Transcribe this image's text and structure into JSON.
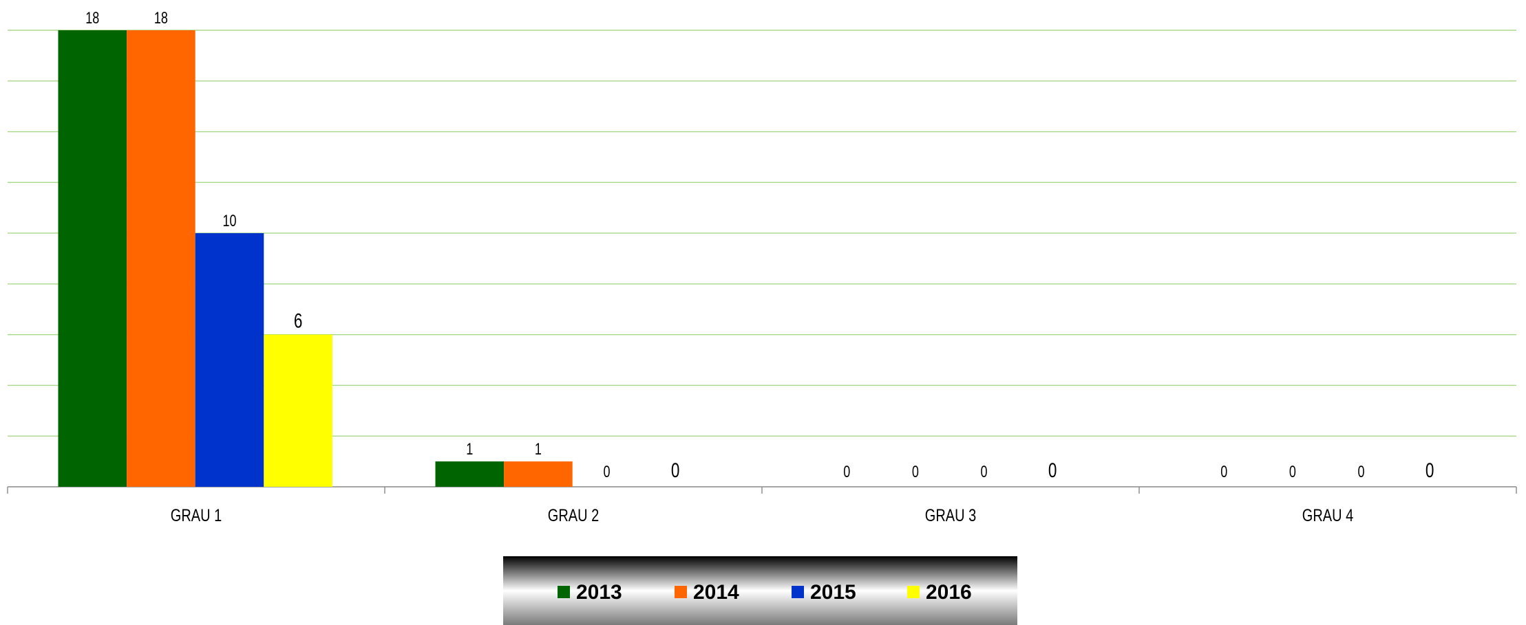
{
  "chart_data": {
    "type": "bar",
    "categories": [
      "GRAU 1",
      "GRAU 2",
      "GRAU 3",
      "GRAU 4"
    ],
    "series": [
      {
        "name": "2013",
        "color": "#006400",
        "values": [
          18,
          1,
          0,
          0
        ]
      },
      {
        "name": "2014",
        "color": "#ff6600",
        "values": [
          18,
          1,
          0,
          0
        ]
      },
      {
        "name": "2015",
        "color": "#0033cc",
        "values": [
          10,
          0,
          0,
          0
        ]
      },
      {
        "name": "2016",
        "color": "#ffff00",
        "values": [
          6,
          0,
          0,
          0
        ]
      }
    ],
    "ylim": [
      0,
      18
    ],
    "yticks": [
      0,
      2,
      4,
      6,
      8,
      10,
      12,
      14,
      16,
      18
    ],
    "grid": true,
    "legend": "bottom"
  }
}
